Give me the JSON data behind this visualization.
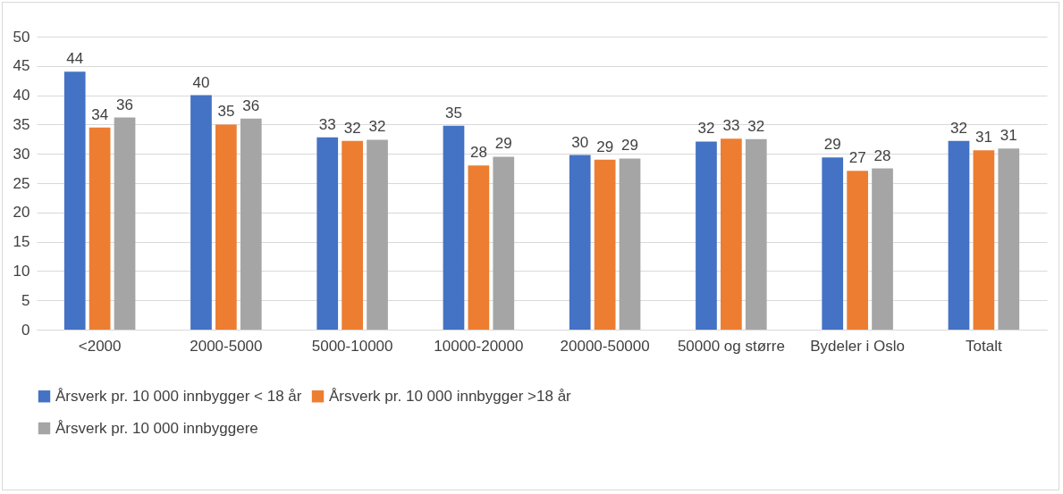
{
  "chart_data": {
    "type": "bar",
    "categories": [
      "<2000",
      "2000-5000",
      "5000-10000",
      "10000-20000",
      "20000-50000",
      "50000 og større",
      "Bydeler i Oslo",
      "Totalt"
    ],
    "series": [
      {
        "name": "Årsverk pr.  10 000 innbygger < 18 år",
        "color": "#4472c4",
        "values": [
          44,
          40,
          32.8,
          34.8,
          29.8,
          32.1,
          29.4,
          32.2
        ],
        "value_labels": [
          "44",
          "40",
          "33",
          "35",
          "30",
          "32",
          "29",
          "32"
        ]
      },
      {
        "name": "Årsverk pr.  10 000 innbygger >18 år",
        "color": "#ed7d31",
        "values": [
          34.5,
          35,
          32.2,
          28,
          29,
          32.6,
          27.1,
          30.6
        ],
        "value_labels": [
          "34",
          "35",
          "32",
          "28",
          "29",
          "33",
          "27",
          "31"
        ]
      },
      {
        "name": "Årsverk pr. 10 000 innbyggere",
        "color": "#a5a5a5",
        "values": [
          36.2,
          36,
          32.4,
          29.5,
          29.2,
          32.5,
          27.5,
          30.9
        ],
        "value_labels": [
          "36",
          "36",
          "32",
          "29",
          "29",
          "32",
          "28",
          "31"
        ]
      }
    ],
    "ylim": [
      0,
      50
    ],
    "yticks": [
      0,
      5,
      10,
      15,
      20,
      25,
      30,
      35,
      40,
      45,
      50
    ],
    "grid": "y",
    "legend": "bottom"
  }
}
